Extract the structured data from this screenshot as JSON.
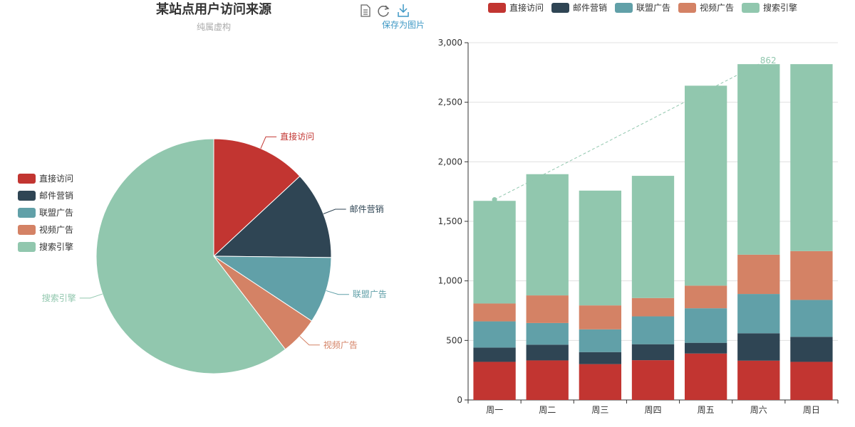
{
  "title": "某站点用户访问来源",
  "subtitle": "纯属虚构",
  "toolbox": {
    "data_view_icon": "data-view-icon",
    "restore_icon": "restore-icon",
    "save_icon": "save-as-image-icon",
    "save_label": "保存为图片",
    "active_color": "#3e98c5",
    "icon_color": "#666666"
  },
  "colors": [
    "#c23531",
    "#2f4554",
    "#61a0a8",
    "#d48265",
    "#91c7ae"
  ],
  "chart_data": [
    {
      "type": "pie",
      "legend_position": "left",
      "legend": [
        "直接访问",
        "邮件营销",
        "联盟广告",
        "视频广告",
        "搜索引擎"
      ],
      "slices": [
        {
          "name": "直接访问",
          "value": 335
        },
        {
          "name": "邮件营销",
          "value": 310
        },
        {
          "name": "联盟广告",
          "value": 234
        },
        {
          "name": "视频广告",
          "value": 135
        },
        {
          "name": "搜索引擎",
          "value": 1548
        }
      ]
    },
    {
      "type": "bar",
      "stacked": true,
      "legend_position": "top",
      "legend": [
        "直接访问",
        "邮件营销",
        "联盟广告",
        "视频广告",
        "搜索引擎"
      ],
      "categories": [
        "周一",
        "周二",
        "周三",
        "周四",
        "周五",
        "周六",
        "周日"
      ],
      "y_ticks": [
        "0",
        "500",
        "1,000",
        "1,500",
        "2,000",
        "2,500",
        "3,000"
      ],
      "ylim": [
        0,
        3000
      ],
      "grid": true,
      "series": [
        {
          "name": "直接访问",
          "values": [
            320,
            332,
            301,
            334,
            390,
            330,
            320
          ]
        },
        {
          "name": "邮件营销",
          "values": [
            120,
            132,
            101,
            134,
            90,
            230,
            210
          ]
        },
        {
          "name": "联盟广告",
          "values": [
            220,
            182,
            191,
            234,
            290,
            330,
            310
          ]
        },
        {
          "name": "视频广告",
          "values": [
            150,
            232,
            201,
            154,
            190,
            330,
            410
          ]
        },
        {
          "name": "搜索引擎",
          "values": [
            862,
            1018,
            964,
            1026,
            1679,
            1600,
            1570
          ]
        }
      ],
      "mark_line": {
        "from": {
          "category": "周一",
          "value": 1682
        },
        "to": {
          "category": "周六",
          "value": 2820
        },
        "label": "862"
      }
    }
  ]
}
